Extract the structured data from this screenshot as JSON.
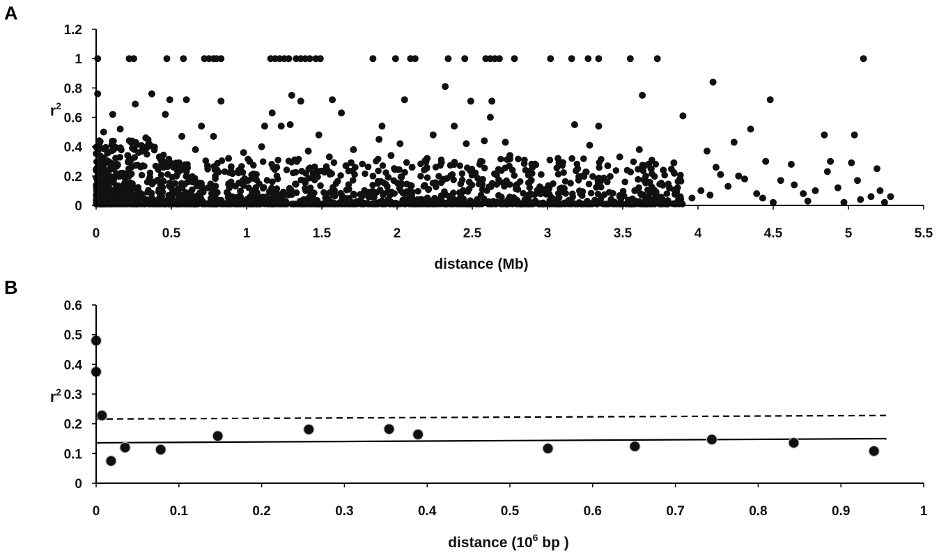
{
  "chart_data": [
    {
      "panel_label": "A",
      "type": "scatter",
      "xlabel": "distance (Mb)",
      "ylabel": "r",
      "ylabel_sup": "2",
      "xlim": [
        0,
        5.5
      ],
      "ylim": [
        0,
        1.2
      ],
      "xticks": [
        "0",
        "0.5",
        "1",
        "1.5",
        "2",
        "2.5",
        "3",
        "3.5",
        "4",
        "4.5",
        "5",
        "5.5"
      ],
      "yticks": [
        "0",
        "0.2",
        "0.4",
        "0.6",
        "0.8",
        "1",
        "1.2"
      ],
      "grid": false,
      "point_color": "#111111",
      "note_density": "dense cloud of ~2000 points concentrated near r2 < 0.3",
      "points": [
        [
          0.01,
          1.0
        ],
        [
          0.22,
          1.0
        ],
        [
          0.25,
          1.0
        ],
        [
          0.47,
          1.0
        ],
        [
          0.58,
          1.0
        ],
        [
          0.72,
          1.0
        ],
        [
          0.75,
          1.0
        ],
        [
          0.78,
          1.0
        ],
        [
          0.8,
          1.0
        ],
        [
          0.83,
          1.0
        ],
        [
          1.16,
          1.0
        ],
        [
          1.19,
          1.0
        ],
        [
          1.22,
          1.0
        ],
        [
          1.25,
          1.0
        ],
        [
          1.28,
          1.0
        ],
        [
          1.33,
          1.0
        ],
        [
          1.36,
          1.0
        ],
        [
          1.39,
          1.0
        ],
        [
          1.42,
          1.0
        ],
        [
          1.46,
          1.0
        ],
        [
          1.49,
          1.0
        ],
        [
          1.84,
          1.0
        ],
        [
          1.99,
          1.0
        ],
        [
          2.09,
          1.0
        ],
        [
          2.12,
          1.0
        ],
        [
          2.34,
          1.0
        ],
        [
          2.45,
          1.0
        ],
        [
          2.59,
          1.0
        ],
        [
          2.62,
          1.0
        ],
        [
          2.65,
          1.0
        ],
        [
          2.68,
          1.0
        ],
        [
          2.78,
          1.0
        ],
        [
          3.02,
          1.0
        ],
        [
          3.16,
          1.0
        ],
        [
          3.27,
          1.0
        ],
        [
          3.34,
          1.0
        ],
        [
          3.55,
          1.0
        ],
        [
          3.73,
          1.0
        ],
        [
          5.1,
          1.0
        ],
        [
          4.1,
          0.84
        ],
        [
          2.32,
          0.81
        ],
        [
          0.01,
          0.76
        ],
        [
          0.37,
          0.76
        ],
        [
          1.3,
          0.75
        ],
        [
          3.63,
          0.75
        ],
        [
          0.49,
          0.72
        ],
        [
          0.6,
          0.72
        ],
        [
          2.49,
          0.71
        ],
        [
          2.63,
          0.71
        ],
        [
          4.48,
          0.72
        ],
        [
          1.57,
          0.72
        ],
        [
          1.36,
          0.71
        ],
        [
          2.05,
          0.72
        ],
        [
          0.83,
          0.71
        ],
        [
          0.11,
          0.62
        ],
        [
          0.46,
          0.62
        ],
        [
          0.26,
          0.69
        ],
        [
          1.17,
          0.63
        ],
        [
          1.63,
          0.63
        ],
        [
          2.62,
          0.6
        ],
        [
          3.9,
          0.61
        ],
        [
          0.7,
          0.54
        ],
        [
          1.12,
          0.54
        ],
        [
          1.23,
          0.54
        ],
        [
          1.29,
          0.55
        ],
        [
          1.9,
          0.54
        ],
        [
          2.38,
          0.54
        ],
        [
          3.18,
          0.55
        ],
        [
          3.34,
          0.54
        ],
        [
          4.35,
          0.52
        ],
        [
          4.84,
          0.48
        ],
        [
          5.04,
          0.48
        ],
        [
          0.05,
          0.5
        ],
        [
          0.16,
          0.52
        ],
        [
          0.33,
          0.46
        ],
        [
          0.57,
          0.47
        ],
        [
          0.78,
          0.47
        ],
        [
          1.48,
          0.48
        ],
        [
          2.24,
          0.48
        ],
        [
          2.58,
          0.44
        ],
        [
          1.88,
          0.45
        ],
        [
          2.72,
          0.43
        ],
        [
          4.24,
          0.43
        ],
        [
          0.02,
          0.44
        ],
        [
          0.35,
          0.42
        ],
        [
          0.66,
          0.38
        ],
        [
          0.98,
          0.36
        ],
        [
          1.1,
          0.4
        ],
        [
          1.41,
          0.37
        ],
        [
          1.71,
          0.38
        ],
        [
          2.02,
          0.42
        ],
        [
          2.46,
          0.42
        ],
        [
          3.28,
          0.41
        ],
        [
          3.61,
          0.38
        ],
        [
          4.06,
          0.37
        ],
        [
          0.08,
          0.36
        ],
        [
          0.21,
          0.34
        ],
        [
          0.42,
          0.33
        ],
        [
          0.88,
          0.32
        ],
        [
          1.02,
          0.3
        ],
        [
          1.32,
          0.31
        ],
        [
          1.55,
          0.33
        ],
        [
          1.96,
          0.34
        ],
        [
          2.2,
          0.32
        ],
        [
          2.75,
          0.34
        ],
        [
          3.07,
          0.32
        ],
        [
          3.48,
          0.33
        ],
        [
          3.84,
          0.29
        ],
        [
          4.45,
          0.3
        ],
        [
          4.88,
          0.3
        ],
        [
          5.02,
          0.29
        ],
        [
          0.03,
          0.3
        ],
        [
          0.14,
          0.28
        ],
        [
          0.31,
          0.27
        ],
        [
          0.52,
          0.26
        ],
        [
          0.74,
          0.27
        ],
        [
          1.2,
          0.26
        ],
        [
          1.66,
          0.27
        ],
        [
          2.1,
          0.26
        ],
        [
          2.55,
          0.28
        ],
        [
          2.9,
          0.26
        ],
        [
          3.2,
          0.25
        ],
        [
          3.4,
          0.27
        ],
        [
          3.77,
          0.24
        ],
        [
          4.12,
          0.26
        ],
        [
          4.27,
          0.2
        ],
        [
          4.62,
          0.28
        ],
        [
          5.19,
          0.25
        ],
        [
          4.2,
          0.13
        ],
        [
          4.31,
          0.18
        ],
        [
          4.39,
          0.08
        ],
        [
          4.55,
          0.17
        ],
        [
          4.64,
          0.14
        ],
        [
          4.7,
          0.08
        ],
        [
          4.78,
          0.1
        ],
        [
          4.86,
          0.23
        ],
        [
          4.93,
          0.12
        ],
        [
          5.06,
          0.17
        ],
        [
          5.15,
          0.06
        ],
        [
          5.21,
          0.1
        ],
        [
          5.28,
          0.06
        ],
        [
          4.02,
          0.1
        ],
        [
          4.08,
          0.07
        ],
        [
          3.96,
          0.05
        ],
        [
          3.88,
          0.18
        ],
        [
          3.81,
          0.12
        ],
        [
          3.72,
          0.07
        ],
        [
          3.66,
          0.16
        ],
        [
          3.58,
          0.1
        ],
        [
          4.15,
          0.21
        ],
        [
          4.43,
          0.05
        ],
        [
          4.5,
          0.02
        ],
        [
          4.73,
          0.03
        ],
        [
          4.97,
          0.02
        ],
        [
          5.08,
          0.04
        ],
        [
          5.24,
          0.02
        ]
      ],
      "dense_band": {
        "x_range": [
          0,
          3.8
        ],
        "y_range": [
          0,
          0.3
        ]
      }
    },
    {
      "panel_label": "B",
      "type": "scatter",
      "xlabel": "distance (10",
      "xlabel_sup": "6",
      "xlabel_end": " bp )",
      "ylabel": "r",
      "ylabel_sup": "2",
      "xlim": [
        0,
        1
      ],
      "ylim": [
        0,
        0.6
      ],
      "xticks": [
        "0",
        "0.1",
        "0.2",
        "0.3",
        "0.4",
        "0.5",
        "0.6",
        "0.7",
        "0.8",
        "0.9",
        "1"
      ],
      "yticks": [
        "0",
        "0.1",
        "0.2",
        "0.3",
        "0.4",
        "0.5",
        "0.6"
      ],
      "grid": false,
      "point_color": "#111111",
      "points": [
        [
          0.0,
          0.48
        ],
        [
          0.0,
          0.375
        ],
        [
          0.007,
          0.228
        ],
        [
          0.018,
          0.075
        ],
        [
          0.035,
          0.12
        ],
        [
          0.078,
          0.113
        ],
        [
          0.147,
          0.159
        ],
        [
          0.257,
          0.181
        ],
        [
          0.354,
          0.182
        ],
        [
          0.389,
          0.164
        ],
        [
          0.546,
          0.117
        ],
        [
          0.651,
          0.124
        ],
        [
          0.744,
          0.147
        ],
        [
          0.843,
          0.136
        ],
        [
          0.94,
          0.108
        ]
      ],
      "lines": [
        {
          "style": "dashed",
          "x": [
            0.0,
            0.955
          ],
          "y": [
            0.216,
            0.228
          ]
        },
        {
          "style": "solid",
          "x": [
            0.0,
            0.955
          ],
          "y": [
            0.136,
            0.15
          ]
        }
      ]
    }
  ]
}
